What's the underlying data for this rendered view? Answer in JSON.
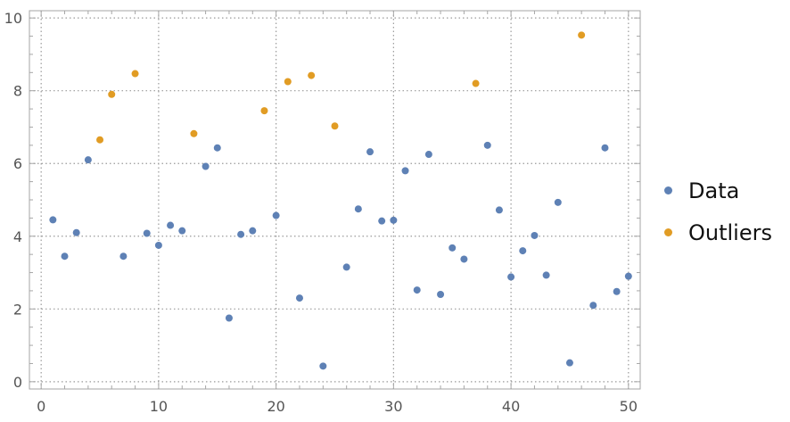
{
  "chart_data": {
    "type": "scatter",
    "title": "",
    "xlabel": "",
    "ylabel": "",
    "xlim": [
      -1,
      51
    ],
    "ylim": [
      -0.2,
      10.2
    ],
    "x_ticks": [
      0,
      10,
      20,
      30,
      40,
      50
    ],
    "y_ticks": [
      0,
      2,
      4,
      6,
      8,
      10
    ],
    "x_tick_labels": [
      "0",
      "10",
      "20",
      "30",
      "40",
      "50"
    ],
    "y_tick_labels": [
      "0",
      "2",
      "4",
      "6",
      "8",
      "10"
    ],
    "grid": true,
    "legend_position": "right",
    "series": [
      {
        "name": "Data",
        "color": "#5e81b5",
        "points": [
          [
            1,
            4.45
          ],
          [
            2,
            3.45
          ],
          [
            3,
            4.1
          ],
          [
            4,
            6.1
          ],
          [
            7,
            3.45
          ],
          [
            9,
            4.08
          ],
          [
            10,
            3.75
          ],
          [
            11,
            4.3
          ],
          [
            12,
            4.15
          ],
          [
            14,
            5.92
          ],
          [
            15,
            6.43
          ],
          [
            16,
            1.75
          ],
          [
            17,
            4.05
          ],
          [
            18,
            4.15
          ],
          [
            20,
            4.57
          ],
          [
            22,
            2.3
          ],
          [
            24,
            0.43
          ],
          [
            26,
            3.15
          ],
          [
            27,
            4.75
          ],
          [
            28,
            6.32
          ],
          [
            29,
            4.42
          ],
          [
            30,
            4.44
          ],
          [
            31,
            5.8
          ],
          [
            32,
            2.52
          ],
          [
            33,
            6.25
          ],
          [
            34,
            2.4
          ],
          [
            35,
            3.68
          ],
          [
            36,
            3.37
          ],
          [
            38,
            6.5
          ],
          [
            39,
            4.72
          ],
          [
            40,
            2.88
          ],
          [
            41,
            3.6
          ],
          [
            42,
            4.02
          ],
          [
            43,
            2.93
          ],
          [
            44,
            4.93
          ],
          [
            45,
            0.52
          ],
          [
            47,
            2.1
          ],
          [
            48,
            6.43
          ],
          [
            49,
            2.48
          ],
          [
            50,
            2.9
          ]
        ]
      },
      {
        "name": "Outliers",
        "color": "#e19c24",
        "points": [
          [
            5,
            6.65
          ],
          [
            6,
            7.9
          ],
          [
            8,
            8.47
          ],
          [
            13,
            6.82
          ],
          [
            19,
            7.45
          ],
          [
            21,
            8.25
          ],
          [
            23,
            8.42
          ],
          [
            25,
            7.03
          ],
          [
            37,
            8.2
          ],
          [
            46,
            9.53
          ]
        ]
      }
    ]
  }
}
